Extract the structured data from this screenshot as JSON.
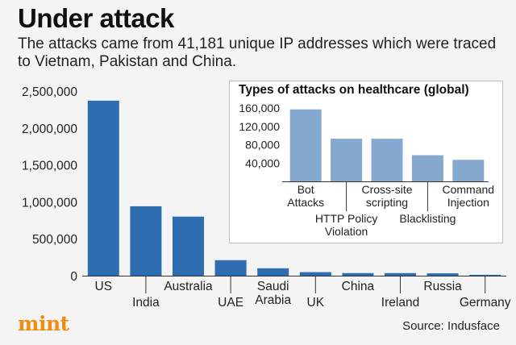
{
  "title": "Under attack",
  "subtitle": "The attacks came from 41,181 unique IP addresses which were traced to Vietnam, Pakistan and China.",
  "source": "Source: Indusface",
  "logo_text": "mint",
  "colors": {
    "bar": "#2f6db3",
    "inset_bar": "#86a9cf",
    "logo": "#f28c0f",
    "background": "#f4f4f4"
  },
  "chart_data": [
    {
      "type": "bar",
      "categories": [
        "US",
        "India",
        "Australia",
        "UAE",
        "Saudi Arabia",
        "UK",
        "China",
        "Ireland",
        "Russia",
        "Germany"
      ],
      "values": [
        2370000,
        940000,
        800000,
        210000,
        100000,
        48000,
        35000,
        35000,
        32000,
        12000
      ],
      "yticks": [
        "0",
        "500,000",
        "1,000,000",
        "1,500,000",
        "2,000,000",
        "2,500,000"
      ],
      "ylim": [
        0,
        2500000
      ],
      "grid": false
    },
    {
      "type": "bar",
      "title": "Types of attacks on healthcare (global)",
      "categories": [
        "Bot Attacks",
        "HTTP Policy Violation",
        "Cross-site scripting",
        "Blacklisting",
        "Command Injection"
      ],
      "values": [
        157000,
        93000,
        93000,
        57000,
        47000
      ],
      "yticks": [
        "40,000",
        "80,000",
        "120,000",
        "160,000"
      ],
      "ylim": [
        0,
        160000
      ],
      "grid": false
    }
  ]
}
